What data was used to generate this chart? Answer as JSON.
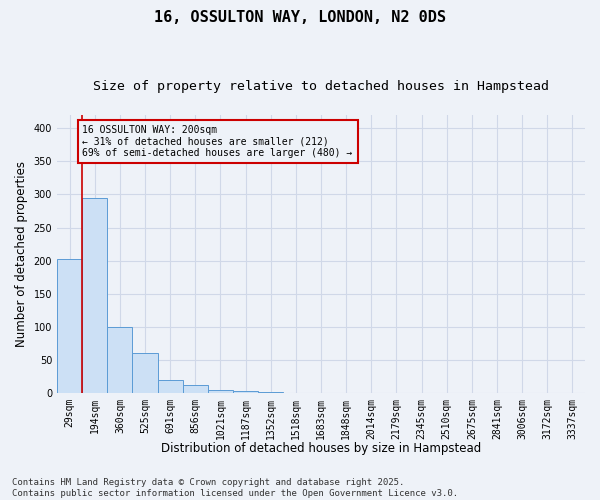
{
  "title1": "16, OSSULTON WAY, LONDON, N2 0DS",
  "title2": "Size of property relative to detached houses in Hampstead",
  "xlabel": "Distribution of detached houses by size in Hampstead",
  "ylabel": "Number of detached properties",
  "categories": [
    "29sqm",
    "194sqm",
    "360sqm",
    "525sqm",
    "691sqm",
    "856sqm",
    "1021sqm",
    "1187sqm",
    "1352sqm",
    "1518sqm",
    "1683sqm",
    "1848sqm",
    "2014sqm",
    "2179sqm",
    "2345sqm",
    "2510sqm",
    "2675sqm",
    "2841sqm",
    "3006sqm",
    "3172sqm",
    "3337sqm"
  ],
  "values": [
    203,
    295,
    100,
    60,
    20,
    12,
    5,
    3,
    2,
    0,
    0,
    0,
    1,
    0,
    0,
    1,
    0,
    0,
    0,
    0,
    1
  ],
  "bar_color": "#cce0f5",
  "bar_edge_color": "#5b9bd5",
  "grid_color": "#d0d8e8",
  "annotation_text": "16 OSSULTON WAY: 200sqm\n← 31% of detached houses are smaller (212)\n69% of semi-detached houses are larger (480) →",
  "vline_color": "#cc0000",
  "vline_x": 0.5,
  "annotation_box_color": "#cc0000",
  "ylim": [
    0,
    420
  ],
  "yticks": [
    0,
    50,
    100,
    150,
    200,
    250,
    300,
    350,
    400
  ],
  "footer_line1": "Contains HM Land Registry data © Crown copyright and database right 2025.",
  "footer_line2": "Contains public sector information licensed under the Open Government Licence v3.0.",
  "bg_color": "#eef2f8",
  "title1_fontsize": 11,
  "title2_fontsize": 9.5,
  "xlabel_fontsize": 8.5,
  "ylabel_fontsize": 8.5,
  "tick_fontsize": 7,
  "footer_fontsize": 6.5
}
